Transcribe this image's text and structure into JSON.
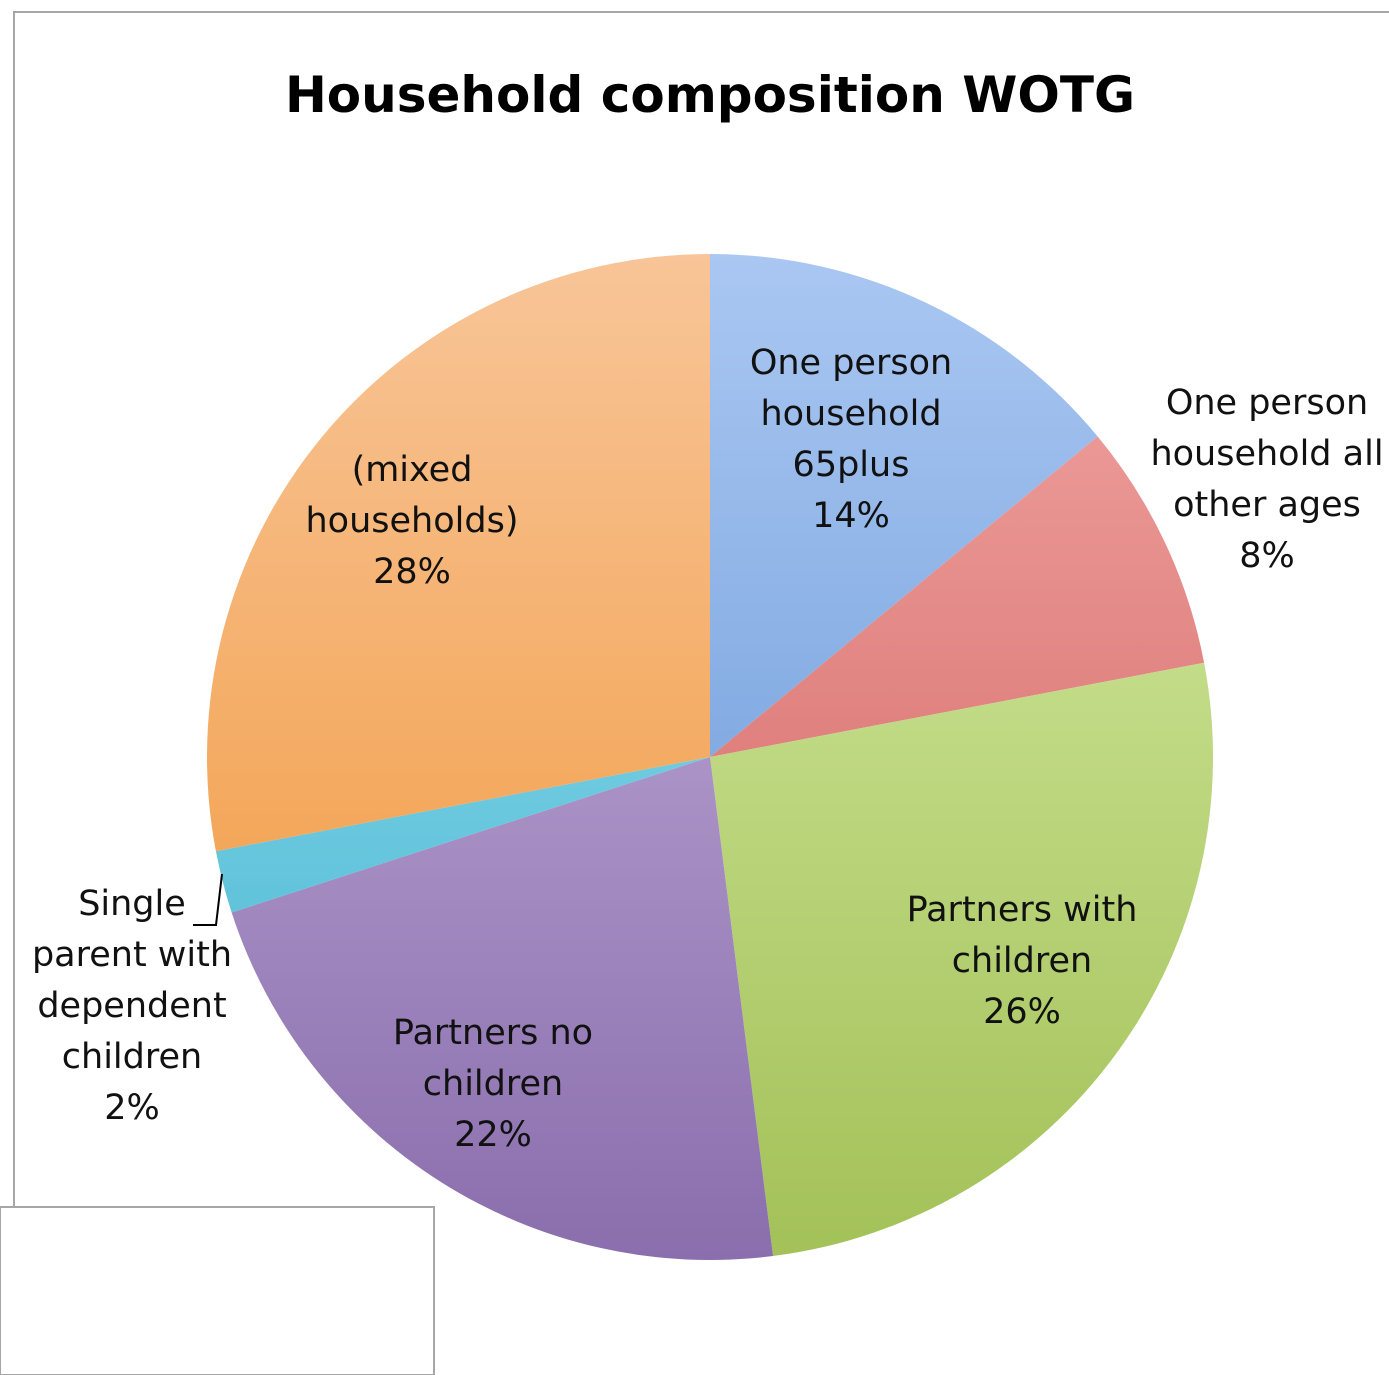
{
  "chart_data": {
    "type": "pie",
    "title": "Household composition WOTG",
    "slices": [
      {
        "label": [
          "One person",
          "household",
          "65plus"
        ],
        "value": 14,
        "pct": "14%",
        "color": "#5b8fd2",
        "light": "#aac7f2"
      },
      {
        "label": [
          "One person",
          "household all",
          "other ages"
        ],
        "value": 8,
        "pct": "8%",
        "color": "#cd5a57",
        "light": "#f1a6a4"
      },
      {
        "label": [
          "Partners with",
          "children"
        ],
        "value": 26,
        "pct": "26%",
        "color": "#a3c158",
        "light": "#d9eeaa"
      },
      {
        "label": [
          "Partners no",
          "children"
        ],
        "value": 22,
        "pct": "22%",
        "color": "#8a6ead",
        "light": "#cbb8e0"
      },
      {
        "label": [
          "Single",
          "parent with",
          "dependent",
          "children"
        ],
        "value": 2,
        "pct": "2%",
        "color": "#3fb4cf",
        "light": "#9fe0f0"
      },
      {
        "label": [
          "(mixed",
          "households)"
        ],
        "value": 28,
        "pct": "28%",
        "color": "#f0922f",
        "light": "#f8c598"
      }
    ]
  }
}
